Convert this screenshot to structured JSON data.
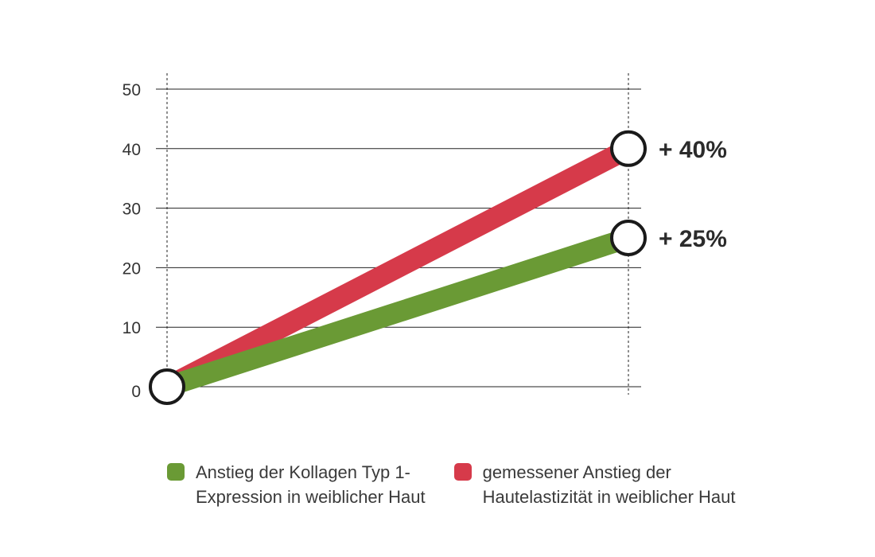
{
  "chart_data": {
    "type": "line",
    "y_ticks": [
      0,
      10,
      20,
      30,
      40,
      50
    ],
    "ylim": [
      0,
      50
    ],
    "grid": true,
    "legend_position": "bottom",
    "series": [
      {
        "label_lines": [
          "Anstieg der Kollagen Typ 1-",
          "Expression in weiblicher Haut"
        ],
        "color": "#6a9a35",
        "values": [
          0,
          25
        ],
        "end_label": "+ 25%"
      },
      {
        "label_lines": [
          "gemessener Anstieg der",
          "Hautelastizität in weiblicher Haut"
        ],
        "color": "#d63a4a",
        "values": [
          0,
          40
        ],
        "end_label": "+ 40%"
      }
    ]
  }
}
